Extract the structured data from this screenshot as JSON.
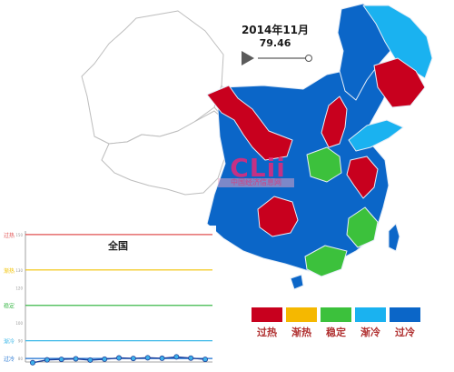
{
  "header": {
    "date_label": "2014年11月",
    "index_value": "79.46"
  },
  "watermark": {
    "logo_text": "CLii",
    "sub_text": "中国经济信息网"
  },
  "map": {
    "colors": {
      "过热": "#c8001e",
      "渐热": "#f5b800",
      "稳定": "#3cc13c",
      "渐冷": "#1ab2f0",
      "过冷": "#0b66c8",
      "无数据": "#ffffff"
    }
  },
  "legend": [
    {
      "label": "过热",
      "color": "#c8001e"
    },
    {
      "label": "渐热",
      "color": "#f5b800"
    },
    {
      "label": "稳定",
      "color": "#3cc13c"
    },
    {
      "label": "渐冷",
      "color": "#1ab2f0"
    },
    {
      "label": "过冷",
      "color": "#0b66c8"
    }
  ],
  "chart_data": {
    "type": "line",
    "title": "全国",
    "bands": [
      {
        "label": "过热",
        "value": 150,
        "color": "#e05050"
      },
      {
        "label": "渐热",
        "value": 130,
        "color": "#f2c200"
      },
      {
        "label": "稳定",
        "value": 110,
        "color": "#3cb84a"
      },
      {
        "label": "渐冷",
        "value": 90,
        "color": "#3ab7e8"
      },
      {
        "label": "过冷",
        "value": 80,
        "color": "#1a6fd0"
      }
    ],
    "ytick_labels": [
      "150",
      "130",
      "120",
      "100",
      "90",
      "80"
    ],
    "ylim": [
      78,
      152
    ],
    "series": [
      {
        "values": [
          77.6,
          79.2,
          79.5,
          79.8,
          79.1,
          79.6,
          80.3,
          80.0,
          80.4,
          80.1,
          80.9,
          80.2,
          79.5
        ]
      }
    ]
  }
}
